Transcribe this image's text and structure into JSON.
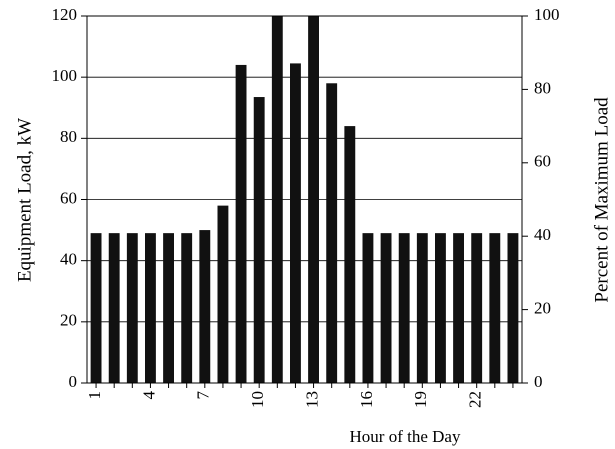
{
  "chart_data": {
    "type": "bar",
    "categories": [
      1,
      null,
      null,
      4,
      null,
      null,
      7,
      null,
      null,
      10,
      null,
      null,
      13,
      null,
      null,
      16,
      null,
      null,
      19,
      null,
      null,
      22,
      null,
      null
    ],
    "values": [
      49,
      49,
      49,
      49,
      49,
      49,
      50,
      58,
      104,
      93.5,
      120,
      104.5,
      120,
      98,
      84,
      49,
      49,
      49,
      49,
      49,
      49,
      49,
      49,
      49
    ],
    "color": "#111111",
    "x_label": "Hour of the Day",
    "y_label": "Equipment Load, kW",
    "y2_label": "Percent of Maximum Load",
    "ylim": [
      0,
      120
    ],
    "yticks": [
      0,
      20,
      40,
      60,
      80,
      100,
      120
    ],
    "y2lim": [
      0,
      100
    ],
    "y2ticks": [
      0,
      20,
      40,
      60,
      80,
      100
    ],
    "grid": true
  }
}
